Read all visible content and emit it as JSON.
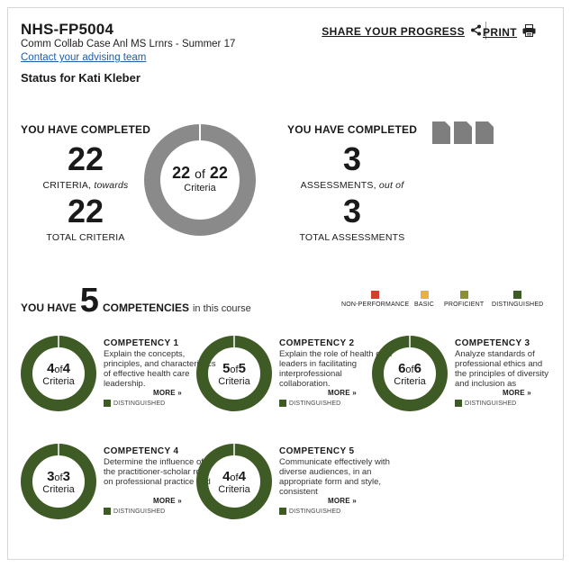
{
  "header": {
    "course_id": "NHS-FP5004",
    "course_name": "Comm Collab Case Anl MS Lrnrs - Summer 17",
    "advising_link": "Contact your advising team",
    "status": "Status for Kati Kleber",
    "share_label": "SHARE YOUR PROGRESS",
    "print_label": "PRINT"
  },
  "criteria": {
    "heading": "YOU HAVE COMPLETED",
    "completed": "22",
    "completed_label": "CRITERIA,",
    "completed_suffix": "towards",
    "total": "22",
    "total_label": "TOTAL CRITERIA",
    "donut": {
      "done": "22",
      "of": "of",
      "total": "22",
      "label": "Criteria",
      "fraction": 1.0
    }
  },
  "assessments": {
    "heading": "YOU HAVE COMPLETED",
    "completed": "3",
    "completed_label": "ASSESSMENTS,",
    "completed_suffix": "out of",
    "total": "3",
    "total_label": "TOTAL ASSESSMENTS",
    "doc_count": 3
  },
  "competencies_header": {
    "prefix": "YOU HAVE",
    "count": "5",
    "word": "COMPETENCIES",
    "suffix": "in this course"
  },
  "legend": [
    {
      "label": "NON-PERFORMANCE",
      "color": "#d1402c"
    },
    {
      "label": "BASIC",
      "color": "#e8b33a"
    },
    {
      "label": "PROFICIENT",
      "color": "#8c8f34"
    },
    {
      "label": "DISTINGUISHED",
      "color": "#3e5b25"
    }
  ],
  "competencies": [
    {
      "title": "COMPETENCY 1",
      "desc": "Explain the concepts, principles, and characteristics of effective health care leadership.",
      "done": "4",
      "total": "4",
      "of": "of",
      "label": "Criteria",
      "status": "DISTINGUISHED",
      "more": "MORE »",
      "fraction": 1.0
    },
    {
      "title": "COMPETENCY 2",
      "desc": "Explain the role of health care leaders in facilitating interprofessional collaboration.",
      "done": "5",
      "total": "5",
      "of": "of",
      "label": "Criteria",
      "status": "DISTINGUISHED",
      "more": "MORE »",
      "fraction": 1.0
    },
    {
      "title": "COMPETENCY 3",
      "desc": "Analyze standards of professional ethics and the principles of diversity and inclusion as",
      "done": "6",
      "total": "6",
      "of": "of",
      "label": "Criteria",
      "status": "DISTINGUISHED",
      "more": "MORE »",
      "fraction": 1.0
    },
    {
      "title": "COMPETENCY 4",
      "desc": "Determine the influence of the practitioner-scholar role on professional practice and",
      "done": "3",
      "total": "3",
      "of": "of",
      "label": "Criteria",
      "status": "DISTINGUISHED",
      "more": "MORE »",
      "fraction": 1.0
    },
    {
      "title": "COMPETENCY 5",
      "desc": "Communicate effectively with diverse audiences, in an appropriate form and style, consistent",
      "done": "4",
      "total": "4",
      "of": "of",
      "label": "Criteria",
      "status": "DISTINGUISHED",
      "more": "MORE »",
      "fraction": 1.0
    }
  ],
  "colors": {
    "donut_gray": "#8a8a8a",
    "distinguished": "#3e5b25",
    "link": "#1d5ea8"
  }
}
